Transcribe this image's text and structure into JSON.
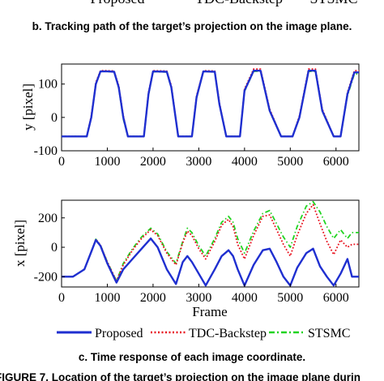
{
  "top_legend": {
    "labels": [
      "Proposed",
      "TDC-Backstep",
      "STSMC"
    ]
  },
  "caption_b": "b. Tracking path of the target’s projection on the image plane.",
  "caption_c": "c. Time response of each image coordinate.",
  "caption_figure": "FIGURE 7. Location of the target’s projection on the image plane durin",
  "colors": {
    "proposed": "#1f2fd0",
    "tdc": "#e8121e",
    "stsmc": "#22d422"
  },
  "chart_data": [
    {
      "type": "line",
      "title": "",
      "xlabel": "",
      "ylabel": "y [pixel]",
      "xlim": [
        0,
        6500
      ],
      "ylim": [
        -100,
        160
      ],
      "xticks": [
        0,
        1000,
        2000,
        3000,
        4000,
        5000,
        6000
      ],
      "yticks": [
        -100,
        0,
        100
      ],
      "grid": false,
      "series": [
        {
          "name": "Proposed",
          "style": "solid",
          "x": [
            0,
            550,
            650,
            750,
            850,
            1000,
            1150,
            1250,
            1350,
            1450,
            1600,
            1800,
            1900,
            2000,
            2300,
            2400,
            2550,
            2700,
            2850,
            2950,
            3100,
            3350,
            3450,
            3600,
            3800,
            3900,
            4000,
            4200,
            4350,
            4550,
            4800,
            4950,
            5050,
            5200,
            5400,
            5550,
            5700,
            5950,
            6100,
            6250,
            6400,
            6500
          ],
          "y": [
            -57,
            -57,
            0,
            100,
            138,
            138,
            137,
            90,
            0,
            -57,
            -57,
            -57,
            70,
            138,
            137,
            90,
            -57,
            -57,
            -57,
            60,
            138,
            137,
            40,
            -57,
            -57,
            -57,
            80,
            140,
            140,
            20,
            -57,
            -57,
            -57,
            0,
            140,
            140,
            20,
            -57,
            -57,
            70,
            135,
            135
          ]
        },
        {
          "name": "TDC-Backstep",
          "style": "dotted",
          "x": [
            0,
            550,
            650,
            750,
            850,
            1000,
            1150,
            1250,
            1350,
            1450,
            1600,
            1800,
            1900,
            2000,
            2300,
            2400,
            2550,
            2700,
            2850,
            2950,
            3100,
            3350,
            3450,
            3600,
            3800,
            3900,
            4000,
            4200,
            4350,
            4550,
            4800,
            4950,
            5050,
            5200,
            5400,
            5550,
            5700,
            5950,
            6100,
            6250,
            6400,
            6500
          ],
          "y": [
            -57,
            -57,
            5,
            105,
            140,
            140,
            139,
            95,
            5,
            -57,
            -57,
            -57,
            75,
            140,
            139,
            95,
            -57,
            -57,
            -57,
            65,
            140,
            139,
            45,
            -57,
            -57,
            -57,
            85,
            145,
            145,
            25,
            -57,
            -57,
            -57,
            5,
            145,
            145,
            25,
            -57,
            -57,
            75,
            140,
            140
          ]
        },
        {
          "name": "STSMC",
          "style": "dashdot",
          "x": [
            0,
            550,
            650,
            750,
            850,
            1000,
            1150,
            1250,
            1350,
            1450,
            1600,
            1800,
            1900,
            2000,
            2300,
            2400,
            2550,
            2700,
            2850,
            2950,
            3100,
            3350,
            3450,
            3600,
            3800,
            3900,
            4000,
            4200,
            4350,
            4550,
            4800,
            4950,
            5050,
            5200,
            5400,
            5550,
            5700,
            5950,
            6100,
            6250,
            6400,
            6500
          ],
          "y": [
            -57,
            -57,
            0,
            100,
            138,
            138,
            136,
            88,
            -5,
            -57,
            -57,
            -57,
            68,
            137,
            136,
            88,
            -57,
            -57,
            -57,
            58,
            138,
            136,
            40,
            -57,
            -57,
            -57,
            78,
            138,
            139,
            18,
            -57,
            -57,
            -57,
            0,
            138,
            138,
            18,
            -57,
            -57,
            65,
            130,
            130
          ]
        }
      ]
    },
    {
      "type": "line",
      "title": "",
      "xlabel": "Frame",
      "ylabel": "x [pixel]",
      "xlim": [
        0,
        6500
      ],
      "ylim": [
        -270,
        320
      ],
      "xticks": [
        0,
        1000,
        2000,
        3000,
        4000,
        5000,
        6000
      ],
      "yticks": [
        -200,
        0,
        200
      ],
      "grid": false,
      "series": [
        {
          "name": "Proposed",
          "style": "solid",
          "x": [
            0,
            250,
            500,
            650,
            750,
            850,
            1000,
            1200,
            1350,
            1550,
            1750,
            1950,
            2100,
            2300,
            2500,
            2650,
            2750,
            2850,
            3000,
            3150,
            3350,
            3500,
            3650,
            3750,
            3850,
            4000,
            4200,
            4400,
            4550,
            4700,
            4850,
            5000,
            5150,
            5350,
            5500,
            5650,
            5800,
            5950,
            6100,
            6250,
            6350,
            6500
          ],
          "y": [
            -200,
            -200,
            -150,
            -30,
            50,
            10,
            -110,
            -240,
            -150,
            -80,
            -10,
            60,
            0,
            -150,
            -250,
            -100,
            -60,
            -100,
            -180,
            -260,
            -150,
            -60,
            -20,
            -60,
            -150,
            -260,
            -120,
            -20,
            -10,
            -100,
            -200,
            -260,
            -140,
            -40,
            -10,
            -130,
            -200,
            -260,
            -180,
            -80,
            -200,
            -200
          ]
        },
        {
          "name": "TDC-Backstep",
          "style": "dotted",
          "x": [
            0,
            250,
            500,
            650,
            750,
            850,
            1000,
            1200,
            1350,
            1550,
            1750,
            1950,
            2100,
            2300,
            2500,
            2650,
            2750,
            2850,
            3000,
            3150,
            3350,
            3500,
            3650,
            3750,
            3850,
            4000,
            4200,
            4400,
            4550,
            4700,
            4850,
            5000,
            5150,
            5350,
            5500,
            5650,
            5800,
            5950,
            6100,
            6250,
            6350,
            6500
          ],
          "y": [
            -200,
            -200,
            -150,
            -30,
            55,
            15,
            -100,
            -230,
            -120,
            -20,
            60,
            120,
            80,
            -40,
            -120,
            30,
            110,
            80,
            -10,
            -80,
            40,
            150,
            190,
            140,
            20,
            -80,
            80,
            210,
            220,
            120,
            20,
            -60,
            80,
            230,
            290,
            160,
            40,
            -50,
            50,
            0,
            20,
            20
          ]
        },
        {
          "name": "STSMC",
          "style": "dashdot",
          "x": [
            0,
            250,
            500,
            650,
            750,
            850,
            1000,
            1200,
            1350,
            1550,
            1750,
            1950,
            2100,
            2300,
            2500,
            2650,
            2750,
            2850,
            3000,
            3150,
            3350,
            3500,
            3650,
            3750,
            3850,
            4000,
            4200,
            4400,
            4550,
            4700,
            4850,
            5000,
            5150,
            5350,
            5500,
            5650,
            5800,
            5950,
            6100,
            6250,
            6350,
            6500
          ],
          "y": [
            -200,
            -200,
            -150,
            -30,
            55,
            15,
            -100,
            -230,
            -110,
            -10,
            70,
            130,
            90,
            -30,
            -110,
            40,
            130,
            100,
            10,
            -60,
            60,
            170,
            210,
            170,
            60,
            -40,
            110,
            230,
            250,
            160,
            70,
            0,
            140,
            280,
            310,
            240,
            140,
            60,
            120,
            60,
            100,
            100
          ]
        }
      ]
    }
  ]
}
